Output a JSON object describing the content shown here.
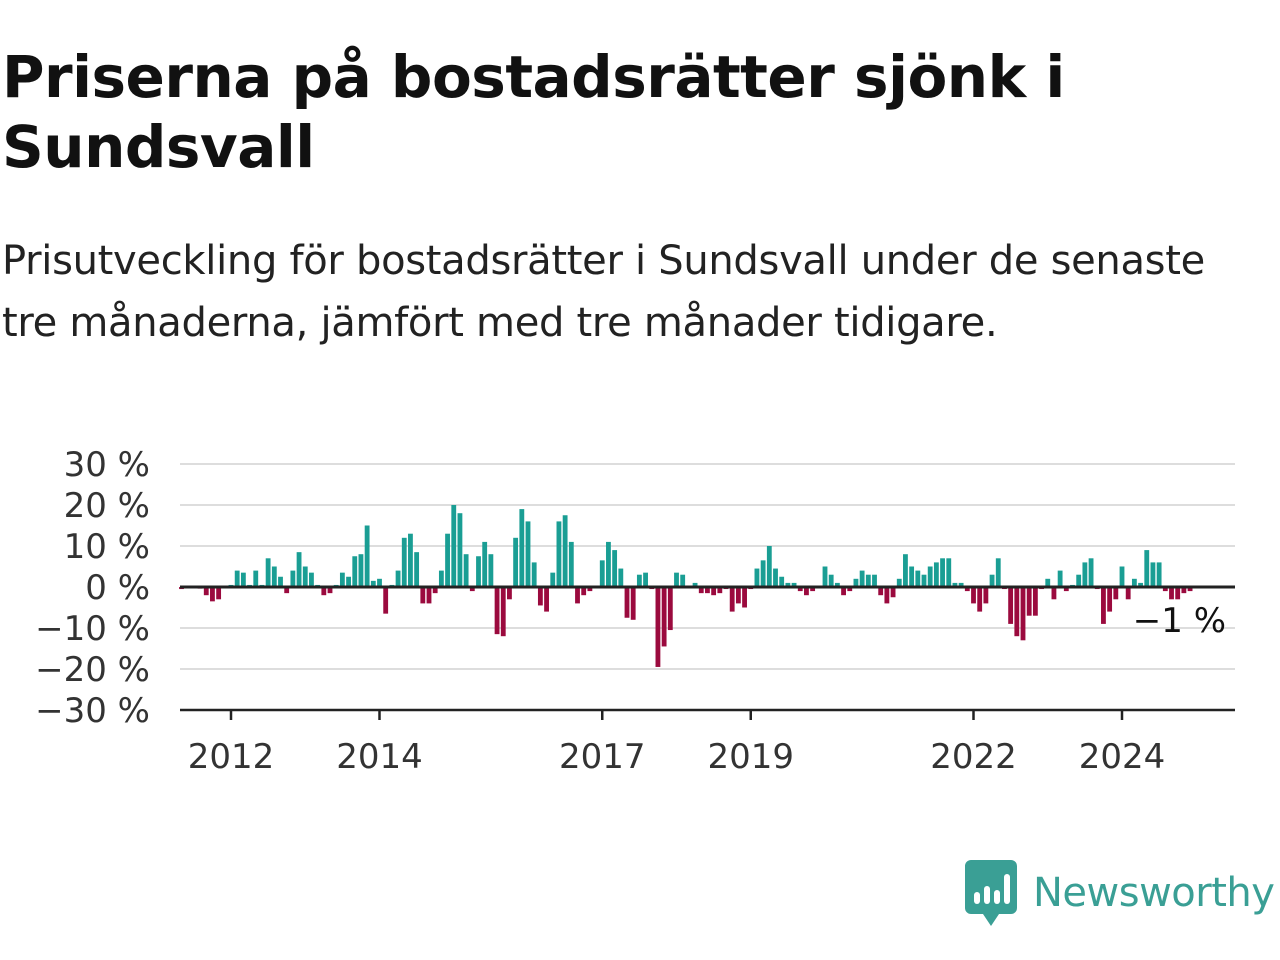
{
  "header": {
    "title": "Priserna på bostadsrätter sjönk i Sundsvall",
    "subtitle": "Prisutveckling för bostadsrätter i Sundsvall under de senaste tre månaderna, jämfört med tre månader tidigare."
  },
  "brand": {
    "name": "Newsworthy",
    "icon": "newsworthy-bar-chart-icon"
  },
  "colors": {
    "positive": "#1a9e94",
    "negative": "#9b0a3e",
    "grid": "#dddddd",
    "axis": "#222222"
  },
  "chart_data": {
    "type": "bar",
    "title": "",
    "xlabel": "",
    "ylabel": "",
    "unit": "%",
    "ylim": [
      -30,
      30
    ],
    "yticks": [
      30,
      20,
      10,
      0,
      -10,
      -20,
      -30
    ],
    "ytick_labels": [
      "30 %",
      "20 %",
      "10 %",
      "0 %",
      "−10 %",
      "−20 %",
      "−30 %"
    ],
    "xtick_labels": [
      "2012",
      "2014",
      "2017",
      "2019",
      "2022",
      "2024"
    ],
    "xtick_values": [
      "2012-01",
      "2014-01",
      "2017-01",
      "2019-01",
      "2022-01",
      "2024-01"
    ],
    "grid": true,
    "last_value_label": "−1 %",
    "start_month": "2011-05",
    "values": [
      -0.5,
      0.3,
      -0.2,
      -0.4,
      -2,
      -3.5,
      -3,
      0.2,
      0.5,
      4,
      3.5,
      0.5,
      4,
      0.5,
      7,
      5,
      2.5,
      -1.5,
      4,
      8.5,
      5,
      3.5,
      0.5,
      -2,
      -1.5,
      0.5,
      3.5,
      2.5,
      7.5,
      8,
      15,
      1.5,
      2,
      -6.5,
      0.5,
      4,
      12,
      13,
      8.5,
      -4,
      -4,
      -1.5,
      4,
      13,
      20,
      18,
      8,
      -1,
      7.5,
      11,
      8,
      -11.5,
      -12,
      -3,
      12,
      19,
      16,
      6,
      -4.5,
      -6,
      3.5,
      16,
      17.5,
      11,
      -4,
      -2,
      -1,
      0.3,
      6.5,
      11,
      9,
      4.5,
      -7.5,
      -8,
      3,
      3.5,
      -0.5,
      -19.5,
      -14.5,
      -10.5,
      3.5,
      3,
      0.2,
      1,
      -1.5,
      -1.5,
      -2,
      -1.5,
      -0.5,
      -6,
      -4,
      -5,
      -0.5,
      4.5,
      6.5,
      10,
      4.5,
      2.5,
      1,
      1,
      -1,
      -2,
      -1,
      0,
      5,
      3,
      1,
      -2,
      -1,
      2,
      4,
      3,
      3,
      -2,
      -4,
      -2.5,
      2,
      8,
      5,
      4,
      3,
      5,
      6,
      7,
      7,
      1,
      1,
      -1,
      -4,
      -6,
      -4,
      3,
      7,
      -0.5,
      -9,
      -12,
      -13,
      -7,
      -7,
      -0.5,
      2,
      -3,
      4,
      -1,
      0.5,
      3,
      6,
      7,
      -0.5,
      -9,
      -6,
      -3,
      5,
      -3,
      2,
      1,
      9,
      6,
      6,
      -1,
      -3,
      -3,
      -1.5,
      -1
    ]
  }
}
